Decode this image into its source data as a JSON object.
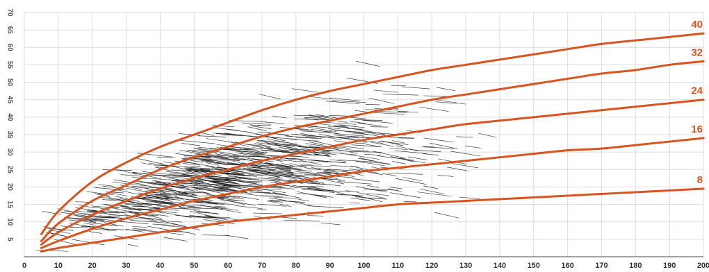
{
  "chart_data": {
    "type": "line",
    "title": "",
    "xlabel": "",
    "ylabel": "",
    "xlim": [
      0,
      200
    ],
    "ylim": [
      0,
      70
    ],
    "grid": true,
    "x_ticks": [
      "0",
      "10",
      "20",
      "30",
      "40",
      "50",
      "60",
      "70",
      "80",
      "90",
      "100",
      "110",
      "120",
      "130",
      "140",
      "150",
      "160",
      "170",
      "180",
      "190",
      "200"
    ],
    "y_ticks": [
      "0",
      "5",
      "10",
      "15",
      "20",
      "25",
      "30",
      "35",
      "40",
      "45",
      "50",
      "55",
      "60",
      "65",
      "70"
    ],
    "x": [
      5,
      10,
      20,
      30,
      40,
      50,
      60,
      70,
      80,
      90,
      100,
      110,
      120,
      130,
      140,
      150,
      160,
      170,
      180,
      190,
      200
    ],
    "series": [
      {
        "name": "40",
        "values": [
          6.5,
          13,
          21.5,
          27,
          31.5,
          35,
          38.5,
          42,
          45,
          47.5,
          49.5,
          51.5,
          53.5,
          55,
          56.5,
          58,
          59.5,
          61,
          62,
          63,
          64
        ]
      },
      {
        "name": "32",
        "values": [
          4.5,
          9.5,
          16,
          20.5,
          25,
          28.5,
          31.5,
          34.5,
          37,
          39,
          41,
          43,
          45,
          46.5,
          48,
          49.5,
          51,
          52.5,
          53.5,
          55,
          56
        ]
      },
      {
        "name": "24",
        "values": [
          3.5,
          7,
          12,
          16,
          19.5,
          22.5,
          25,
          27.5,
          29.5,
          31.5,
          33.5,
          35,
          36.5,
          38,
          39,
          40,
          41,
          42,
          43,
          44,
          45
        ]
      },
      {
        "name": "16",
        "values": [
          2.5,
          4.5,
          8,
          11,
          13.5,
          16,
          18,
          20,
          21.5,
          23,
          24.5,
          25.5,
          26.5,
          27.5,
          28.5,
          29.5,
          30.5,
          31,
          32,
          33,
          34
        ]
      },
      {
        "name": "8",
        "values": [
          1.5,
          2.5,
          4,
          5.5,
          7,
          8.5,
          10,
          11,
          12,
          13,
          14,
          15,
          15.5,
          16,
          16.5,
          17,
          17.5,
          18,
          18.5,
          19,
          19.5
        ]
      }
    ],
    "curve_labels": [
      "40",
      "32",
      "24",
      "16",
      "8"
    ],
    "scatter_segments": {
      "description_values": [
        {
          "x": 10,
          "y": 10
        },
        {
          "x": 15,
          "y": 19
        },
        {
          "x": 20,
          "y": 12
        },
        {
          "x": 25,
          "y": 14
        },
        {
          "x": 30,
          "y": 17
        },
        {
          "x": 35,
          "y": 20
        },
        {
          "x": 40,
          "y": 22
        },
        {
          "x": 45,
          "y": 24
        },
        {
          "x": 50,
          "y": 26
        },
        {
          "x": 55,
          "y": 27
        },
        {
          "x": 60,
          "y": 28
        },
        {
          "x": 65,
          "y": 29
        },
        {
          "x": 70,
          "y": 30
        },
        {
          "x": 75,
          "y": 31
        },
        {
          "x": 80,
          "y": 31
        },
        {
          "x": 85,
          "y": 32
        },
        {
          "x": 90,
          "y": 33
        },
        {
          "x": 100,
          "y": 31
        },
        {
          "x": 110,
          "y": 32
        },
        {
          "x": 120,
          "y": 30
        },
        {
          "x": 130,
          "y": 31
        },
        {
          "x": 140,
          "y": 30
        }
      ]
    }
  }
}
